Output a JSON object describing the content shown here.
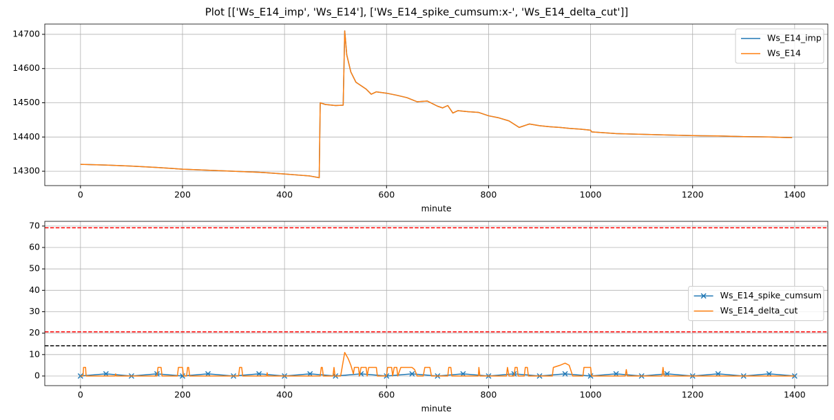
{
  "title": "Plot [['Ws_E14_imp', 'Ws_E14'], ['Ws_E14_spike_cumsum:x-', 'Ws_E14_delta_cut']]",
  "chart_data": [
    {
      "type": "line",
      "xlabel": "minute",
      "grid": true,
      "legend": "upper right",
      "xlim": [
        -70,
        1465
      ],
      "ylim": [
        14258,
        14730
      ],
      "xticks": [
        0,
        200,
        400,
        600,
        800,
        1000,
        1200,
        1400
      ],
      "yticks": [
        14300,
        14400,
        14500,
        14600,
        14700
      ],
      "x": [
        0,
        50,
        100,
        150,
        200,
        250,
        300,
        350,
        400,
        450,
        468,
        470,
        480,
        500,
        515,
        518,
        522,
        530,
        540,
        560,
        570,
        580,
        600,
        620,
        640,
        660,
        680,
        700,
        710,
        720,
        730,
        740,
        760,
        780,
        800,
        820,
        840,
        860,
        880,
        900,
        920,
        940,
        960,
        980,
        1000,
        1002,
        1050,
        1100,
        1150,
        1200,
        1250,
        1300,
        1350,
        1395
      ],
      "series": [
        {
          "name": "Ws_E14_imp",
          "color": "#1f77b4",
          "values": [
            14320,
            14318,
            14315,
            14311,
            14306,
            14303,
            14300,
            14297,
            14292,
            14286,
            14281,
            14500,
            14495,
            14492,
            14493,
            14710,
            14640,
            14590,
            14560,
            14540,
            14525,
            14532,
            14528,
            14522,
            14515,
            14503,
            14505,
            14490,
            14485,
            14492,
            14470,
            14477,
            14474,
            14472,
            14462,
            14456,
            14447,
            14428,
            14438,
            14433,
            14430,
            14428,
            14425,
            14423,
            14420,
            14415,
            14410,
            14408,
            14406,
            14404,
            14403,
            14401,
            14400,
            14398
          ]
        },
        {
          "name": "Ws_E14",
          "color": "#ff7f0e",
          "values": [
            14320,
            14318,
            14315,
            14311,
            14306,
            14303,
            14300,
            14297,
            14292,
            14286,
            14281,
            14500,
            14495,
            14492,
            14493,
            14710,
            14640,
            14590,
            14560,
            14540,
            14525,
            14532,
            14528,
            14522,
            14515,
            14503,
            14505,
            14490,
            14485,
            14492,
            14470,
            14477,
            14474,
            14472,
            14462,
            14456,
            14447,
            14428,
            14438,
            14433,
            14430,
            14428,
            14425,
            14423,
            14420,
            14415,
            14410,
            14408,
            14406,
            14404,
            14403,
            14401,
            14400,
            14398
          ]
        }
      ]
    },
    {
      "type": "line",
      "xlabel": "minute",
      "grid": true,
      "legend": "center right",
      "xlim": [
        -70,
        1465
      ],
      "ylim": [
        -4.5,
        72.2
      ],
      "xticks": [
        0,
        200,
        400,
        600,
        800,
        1000,
        1200,
        1400
      ],
      "yticks": [
        0,
        10,
        20,
        30,
        40,
        50,
        60,
        70
      ],
      "hlines": [
        {
          "value": 69.2,
          "color": "#ff0000",
          "linestyle": "dashed"
        },
        {
          "value": 20.6,
          "color": "#ff0000",
          "linestyle": "dashed"
        },
        {
          "value": 14.1,
          "color": "#000000",
          "linestyle": "dashed"
        }
      ],
      "series": [
        {
          "name": "Ws_E14_spike_cumsum",
          "color": "#1f77b4",
          "marker": "x",
          "x": [
            0,
            50,
            100,
            150,
            200,
            250,
            300,
            350,
            400,
            450,
            500,
            550,
            600,
            650,
            700,
            750,
            800,
            850,
            900,
            950,
            1000,
            1050,
            1100,
            1150,
            1200,
            1250,
            1300,
            1350,
            1400
          ],
          "values": [
            0,
            1,
            0,
            1,
            0,
            1,
            0,
            1,
            0,
            1,
            0,
            1,
            0,
            1,
            0,
            1,
            0,
            1,
            0,
            1,
            0,
            1,
            0,
            1,
            0,
            1,
            0,
            1,
            0
          ]
        },
        {
          "name": "Ws_E14_delta_cut",
          "color": "#ff7f0e",
          "x": [
            0,
            5,
            6,
            10,
            11,
            68,
            69,
            70,
            150,
            152,
            158,
            160,
            190,
            192,
            200,
            202,
            208,
            210,
            212,
            214,
            310,
            312,
            316,
            318,
            365,
            366,
            367,
            470,
            472,
            474,
            476,
            495,
            497,
            499,
            510,
            518,
            525,
            530,
            535,
            537,
            545,
            547,
            550,
            560,
            562,
            565,
            580,
            582,
            600,
            602,
            610,
            612,
            615,
            620,
            622,
            628,
            650,
            655,
            660,
            672,
            675,
            685,
            688,
            720,
            722,
            726,
            728,
            780,
            781,
            783,
            835,
            837,
            840,
            850,
            852,
            856,
            858,
            870,
            872,
            876,
            878,
            925,
            927,
            940,
            950,
            958,
            965,
            985,
            987,
            1000,
            1002,
            1068,
            1070,
            1072,
            1140,
            1142,
            1144,
            1400
          ],
          "values": [
            0,
            0,
            4,
            4,
            0,
            0,
            1,
            0,
            0,
            4,
            4,
            0,
            0,
            4,
            4,
            0,
            0,
            4,
            4,
            0,
            0,
            4,
            4,
            0,
            0,
            1.5,
            0,
            0,
            4,
            4,
            0,
            0,
            4,
            0,
            0,
            11,
            8,
            5,
            1,
            4,
            4,
            0,
            4,
            4,
            0,
            4,
            4,
            0,
            0,
            4,
            4,
            0,
            4,
            4,
            0,
            4,
            4,
            3,
            0,
            0,
            4,
            4,
            0,
            0,
            4,
            4,
            0,
            0,
            4,
            0,
            0,
            4,
            0,
            0,
            4,
            4,
            0,
            0,
            4,
            4,
            0,
            0,
            4,
            5,
            6,
            5,
            0,
            0,
            4,
            4,
            0,
            0,
            3,
            0,
            0,
            4,
            0,
            0
          ]
        }
      ]
    }
  ]
}
